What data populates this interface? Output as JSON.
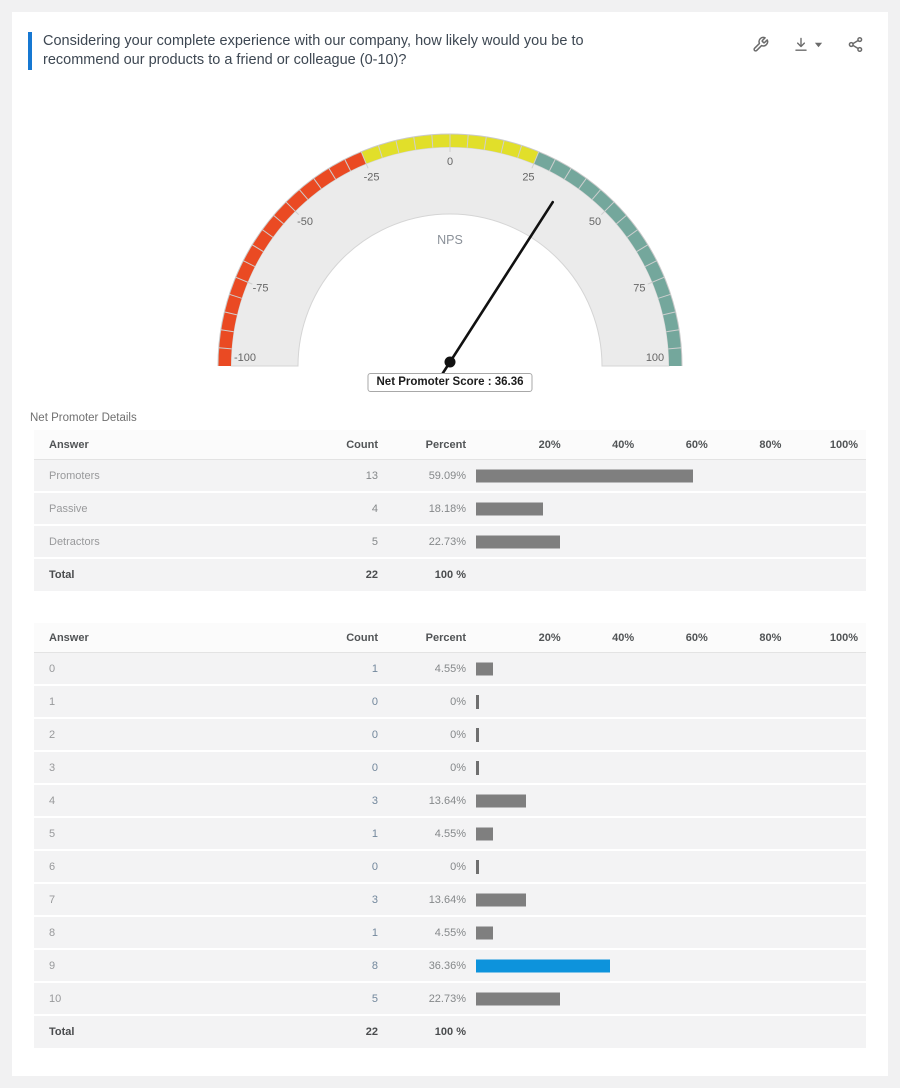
{
  "header": {
    "question": "Considering your complete experience with our company, how likely would you be to recommend our products to a friend or colleague (0-10)?",
    "accent_color": "#1778d2",
    "icons": [
      "wrench-icon",
      "download-icon",
      "caret-down-icon",
      "share-icon"
    ]
  },
  "section_label": "Net Promoter Details",
  "chart_data": {
    "type": "gauge",
    "center_label": "NPS",
    "min": -100,
    "max": 100,
    "value": 36.36,
    "tick_interval": 5,
    "axis_labels": [
      "-100",
      "-75",
      "-50",
      "-25",
      "0",
      "25",
      "50",
      "75",
      "100"
    ],
    "axis_values": [
      -100,
      -75,
      -50,
      -25,
      0,
      25,
      50,
      75,
      100
    ],
    "bands": [
      {
        "from": -100,
        "to": -25,
        "color": "#ea4a23",
        "name": "detractor-zone"
      },
      {
        "from": -25,
        "to": 25,
        "color": "#e1df2a",
        "name": "passive-zone"
      },
      {
        "from": 25,
        "to": 100,
        "color": "#74a79c",
        "name": "promoter-zone"
      }
    ],
    "dial_color": "#ebebeb",
    "needle_color": "#111111",
    "tooltip": "Net Promoter Score : 36.36"
  },
  "tables": [
    {
      "columns": [
        "Answer",
        "Count",
        "Percent"
      ],
      "scale_labels": [
        "20%",
        "40%",
        "60%",
        "80%",
        "100%"
      ],
      "counts_clickable": false,
      "bar_default_color": "#7f7f7f",
      "rows": [
        {
          "answer": "Promoters",
          "count": "13",
          "percent": "59.09%",
          "bar": 59.09,
          "bar_color": "#7f7f7f"
        },
        {
          "answer": "Passive",
          "count": "4",
          "percent": "18.18%",
          "bar": 18.18,
          "bar_color": "#7f7f7f"
        },
        {
          "answer": "Detractors",
          "count": "5",
          "percent": "22.73%",
          "bar": 22.73,
          "bar_color": "#7f7f7f"
        }
      ],
      "total": {
        "answer": "Total",
        "count": "22",
        "percent": "100 %"
      }
    },
    {
      "columns": [
        "Answer",
        "Count",
        "Percent"
      ],
      "scale_labels": [
        "20%",
        "40%",
        "60%",
        "80%",
        "100%"
      ],
      "counts_clickable": true,
      "bar_default_color": "#7f7f7f",
      "rows": [
        {
          "answer": "0",
          "count": "1",
          "percent": "4.55%",
          "bar": 4.55,
          "bar_color": "#7f7f7f"
        },
        {
          "answer": "1",
          "count": "0",
          "percent": "0%",
          "bar": 0,
          "bar_color": "#6f6f6f"
        },
        {
          "answer": "2",
          "count": "0",
          "percent": "0%",
          "bar": 0,
          "bar_color": "#6f6f6f"
        },
        {
          "answer": "3",
          "count": "0",
          "percent": "0%",
          "bar": 0,
          "bar_color": "#6f6f6f"
        },
        {
          "answer": "4",
          "count": "3",
          "percent": "13.64%",
          "bar": 13.64,
          "bar_color": "#7f7f7f"
        },
        {
          "answer": "5",
          "count": "1",
          "percent": "4.55%",
          "bar": 4.55,
          "bar_color": "#7f7f7f"
        },
        {
          "answer": "6",
          "count": "0",
          "percent": "0%",
          "bar": 0,
          "bar_color": "#6f6f6f"
        },
        {
          "answer": "7",
          "count": "3",
          "percent": "13.64%",
          "bar": 13.64,
          "bar_color": "#7f7f7f"
        },
        {
          "answer": "8",
          "count": "1",
          "percent": "4.55%",
          "bar": 4.55,
          "bar_color": "#7f7f7f"
        },
        {
          "answer": "9",
          "count": "8",
          "percent": "36.36%",
          "bar": 36.36,
          "bar_color": "#0d93dc"
        },
        {
          "answer": "10",
          "count": "5",
          "percent": "22.73%",
          "bar": 22.73,
          "bar_color": "#7f7f7f"
        }
      ],
      "total": {
        "answer": "Total",
        "count": "22",
        "percent": "100 %"
      }
    }
  ]
}
